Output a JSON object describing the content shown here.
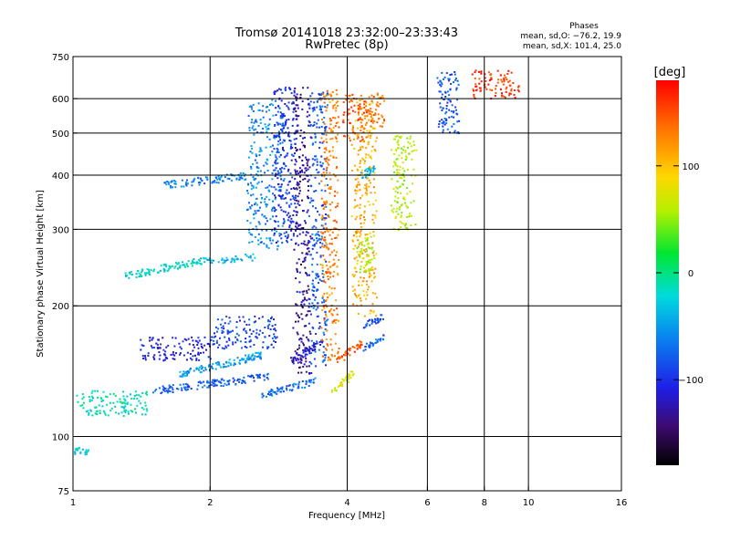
{
  "chart_data": {
    "type": "scatter",
    "title": "Tromsø 20141018 23:32:00–23:33:43",
    "subtitle": "RwPretec (8p)",
    "xlabel": "Frequency [MHz]",
    "ylabel": "Stationary phase Virtual Height [km]",
    "xscale": "log",
    "yscale": "log",
    "xlim": [
      1,
      16
    ],
    "ylim": [
      75,
      750
    ],
    "x_ticks": [
      1,
      2,
      4,
      6,
      8,
      10,
      16
    ],
    "x_grid": [
      2,
      4,
      6,
      8,
      10
    ],
    "y_ticks": [
      75,
      100,
      200,
      300,
      400,
      500,
      600,
      750
    ],
    "y_grid": [
      100,
      200,
      300,
      400,
      500,
      600
    ],
    "grid": true,
    "legend": {
      "title": "Phases",
      "line1": "mean, sd,O: −76.2, 19.9",
      "line2": "mean, sd,X: 101.4, 25.0",
      "placement": "top-right"
    },
    "colorbar": {
      "label": "[deg]",
      "min": -180,
      "max": 180,
      "ticks": [
        100,
        0,
        -100
      ],
      "placement": "right"
    },
    "traces": [
      {
        "x": [
          1.0,
          1.45
        ],
        "y": [
          112,
          128
        ],
        "phase": -15
      },
      {
        "x": [
          1.0,
          1.08
        ],
        "y": [
          93,
          93
        ],
        "phase": -30
      },
      {
        "x": [
          1.3,
          1.9
        ],
        "y": [
          235,
          255
        ],
        "phase": -20
      },
      {
        "x": [
          1.9,
          2.5
        ],
        "y": [
          255,
          260
        ],
        "phase": -40
      },
      {
        "x": [
          1.55,
          2.4
        ],
        "y": [
          380,
          400
        ],
        "phase": -60
      },
      {
        "x": [
          1.4,
          2.0
        ],
        "y": [
          150,
          170
        ],
        "phase": -110
      },
      {
        "x": [
          1.5,
          2.7
        ],
        "y": [
          128,
          138
        ],
        "phase": -80
      },
      {
        "x": [
          1.7,
          2.6
        ],
        "y": [
          140,
          155
        ],
        "phase": -50
      },
      {
        "x": [
          2.0,
          2.8
        ],
        "y": [
          160,
          190
        ],
        "phase": -90
      },
      {
        "x": [
          2.4,
          2.9
        ],
        "y": [
          270,
          600
        ],
        "phase": -60
      },
      {
        "x": [
          2.75,
          3.1
        ],
        "y": [
          280,
          640
        ],
        "phase": -100
      },
      {
        "x": [
          3.05,
          3.3
        ],
        "y": [
          140,
          640
        ],
        "phase": -130
      },
      {
        "x": [
          3.3,
          3.6
        ],
        "y": [
          145,
          630
        ],
        "phase": -80
      },
      {
        "x": [
          2.6,
          3.4
        ],
        "y": [
          125,
          135
        ],
        "phase": -70
      },
      {
        "x": [
          3.0,
          3.5
        ],
        "y": [
          150,
          165
        ],
        "phase": -120
      },
      {
        "x": [
          3.5,
          3.8
        ],
        "y": [
          150,
          630
        ],
        "phase": 130
      },
      {
        "x": [
          3.7,
          4.1
        ],
        "y": [
          128,
          140
        ],
        "phase": 70
      },
      {
        "x": [
          3.8,
          4.3
        ],
        "y": [
          150,
          165
        ],
        "phase": 150
      },
      {
        "x": [
          3.9,
          4.4
        ],
        "y": [
          480,
          620
        ],
        "phase": 150
      },
      {
        "x": [
          4.1,
          4.6
        ],
        "y": [
          190,
          600
        ],
        "phase": 110
      },
      {
        "x": [
          4.3,
          4.8
        ],
        "y": [
          180,
          190
        ],
        "phase": -90
      },
      {
        "x": [
          4.3,
          4.8
        ],
        "y": [
          160,
          170
        ],
        "phase": -70
      },
      {
        "x": [
          4.2,
          4.6
        ],
        "y": [
          240,
          290
        ],
        "phase": 60
      },
      {
        "x": [
          4.3,
          4.6
        ],
        "y": [
          400,
          420
        ],
        "phase": -40
      },
      {
        "x": [
          4.4,
          4.8
        ],
        "y": [
          520,
          620
        ],
        "phase": 130
      },
      {
        "x": [
          5.0,
          5.6
        ],
        "y": [
          300,
          500
        ],
        "phase": 60
      },
      {
        "x": [
          6.3,
          7.0
        ],
        "y": [
          500,
          700
        ],
        "phase": -80
      },
      {
        "x": [
          7.5,
          9.5
        ],
        "y": [
          600,
          700
        ],
        "phase": 160
      }
    ]
  }
}
